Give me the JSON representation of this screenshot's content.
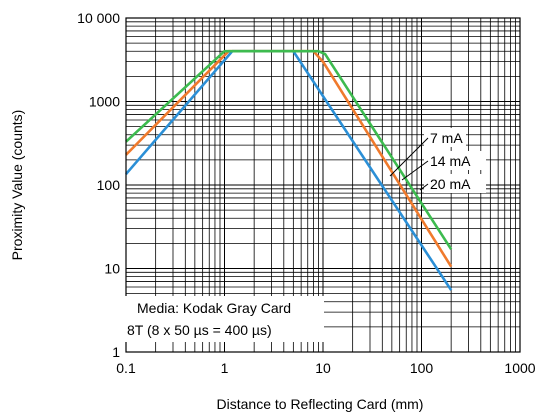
{
  "chart_data": {
    "type": "line",
    "xlabel": "Distance to Reflecting Card (mm)",
    "ylabel": "Proximity Value (counts)",
    "x_scale": "log",
    "y_scale": "log",
    "xlim": [
      0.1,
      1000
    ],
    "ylim": [
      1,
      10000
    ],
    "x_ticks": [
      "0.1",
      "1",
      "10",
      "100",
      "1000"
    ],
    "y_ticks": [
      "1",
      "10",
      "100",
      "1000",
      "10 000"
    ],
    "grid": true,
    "annotation_box": [
      "Media: Kodak Gray Card",
      "8T (8 x 50 µs = 400 µs)"
    ],
    "series": [
      {
        "name": "7 mA",
        "color": "#2b8fd6",
        "x": [
          0.1,
          1.2,
          5,
          200
        ],
        "y": [
          135,
          4000,
          4000,
          5.5
        ]
      },
      {
        "name": "14 mA",
        "color": "#f07a2c",
        "x": [
          0.1,
          1.1,
          8,
          10,
          200
        ],
        "y": [
          230,
          4000,
          4000,
          3000,
          10.5
        ]
      },
      {
        "name": "20 mA",
        "color": "#3dbb4f",
        "x": [
          0.1,
          1,
          9,
          10.5,
          200
        ],
        "y": [
          330,
          4000,
          4000,
          3700,
          17
        ]
      }
    ]
  }
}
